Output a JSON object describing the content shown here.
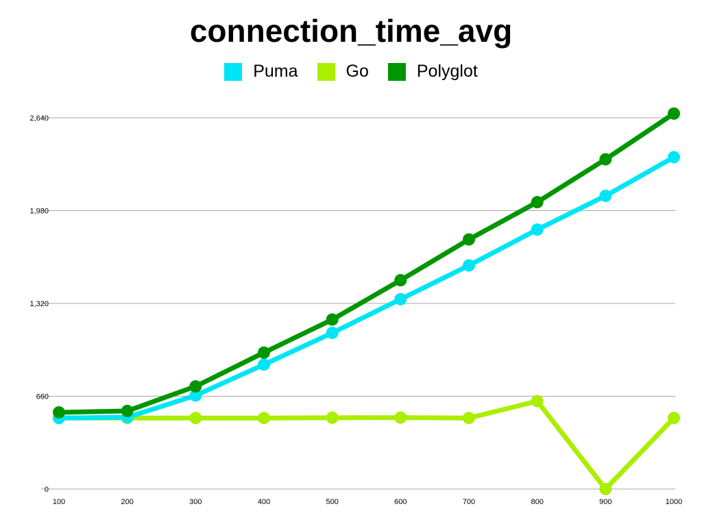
{
  "chart_data": {
    "type": "line",
    "title": "connection_time_avg",
    "xlabel": "",
    "ylabel": "",
    "x": [
      100,
      200,
      300,
      400,
      500,
      600,
      700,
      800,
      900,
      1000
    ],
    "y_ticks": [
      "0",
      "660",
      "1,320",
      "1,980",
      "2,640"
    ],
    "ylim": [
      0,
      2640
    ],
    "grid": true,
    "legend_position": "top-center",
    "series": [
      {
        "name": "Puma",
        "color": "#00E5F5",
        "values": [
          505,
          510,
          665,
          885,
          1110,
          1350,
          1590,
          1845,
          2085,
          2360
        ]
      },
      {
        "name": "Go",
        "color": "#AAEE00",
        "values": [
          505,
          505,
          505,
          505,
          507,
          508,
          505,
          625,
          0,
          505
        ]
      },
      {
        "name": "Polyglot",
        "color": "#009600",
        "values": [
          545,
          555,
          730,
          970,
          1205,
          1485,
          1775,
          2040,
          2345,
          2670
        ]
      }
    ]
  }
}
